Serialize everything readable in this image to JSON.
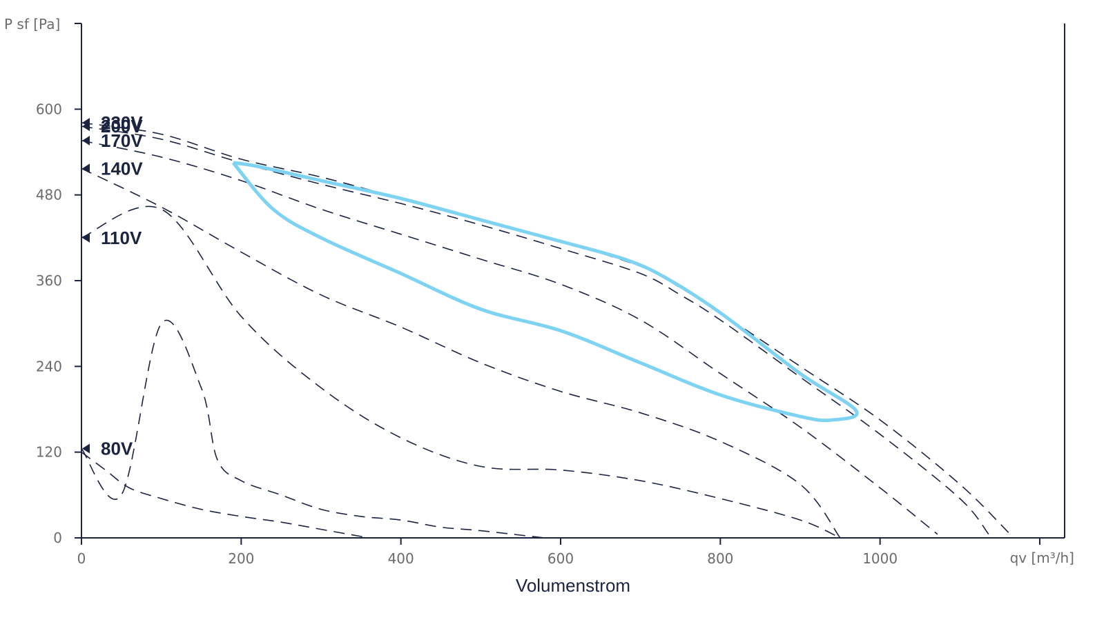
{
  "chart_data": {
    "type": "line",
    "xlabel": "Volumenstrom",
    "x_unit_label": "qv [m³/h]",
    "y_unit_label": "P sf [Pa]",
    "xlim": [
      0,
      1200
    ],
    "ylim": [
      0,
      720
    ],
    "x_ticks": [
      0,
      200,
      400,
      600,
      800,
      1000
    ],
    "y_ticks": [
      0,
      120,
      240,
      360,
      480,
      600
    ],
    "grid": false,
    "legend": "none",
    "colors": {
      "axis": "#1b2340",
      "curve": "#1b2340",
      "envelope": "#7fd3f2",
      "tick_text": "#6b6b6b"
    },
    "series": [
      {
        "name": "230V",
        "x": [
          0,
          100,
          200,
          300,
          400,
          500,
          600,
          700,
          750,
          800,
          900,
          1000,
          1100,
          1163
        ],
        "y": [
          581,
          565,
          530,
          505,
          475,
          445,
          415,
          380,
          350,
          315,
          240,
          165,
          75,
          5
        ]
      },
      {
        "name": "200V",
        "x": [
          0,
          100,
          200,
          300,
          400,
          500,
          600,
          700,
          750,
          800,
          900,
          1000,
          1100,
          1136
        ],
        "y": [
          576,
          558,
          525,
          495,
          468,
          438,
          405,
          370,
          340,
          305,
          225,
          145,
          55,
          5
        ]
      },
      {
        "name": "170V",
        "x": [
          0,
          100,
          200,
          300,
          400,
          500,
          600,
          700,
          800,
          900,
          1000,
          1072
        ],
        "y": [
          556,
          533,
          500,
          460,
          425,
          390,
          355,
          305,
          230,
          155,
          70,
          5
        ]
      },
      {
        "name": "140V",
        "x": [
          0,
          100,
          200,
          300,
          400,
          500,
          600,
          700,
          800,
          900,
          950
        ],
        "y": [
          517,
          463,
          400,
          340,
          295,
          245,
          205,
          175,
          135,
          75,
          0
        ]
      },
      {
        "name": "110V",
        "x": [
          0,
          100,
          200,
          300,
          400,
          500,
          600,
          700,
          800,
          900,
          950
        ],
        "y": [
          420,
          460,
          310,
          210,
          140,
          100,
          95,
          80,
          55,
          25,
          0
        ]
      },
      {
        "name": "80V",
        "x": [
          0,
          50,
          100,
          150,
          170,
          200,
          250,
          300,
          350,
          400,
          450,
          500,
          580
        ],
        "y": [
          125,
          60,
          300,
          210,
          110,
          80,
          60,
          40,
          30,
          25,
          15,
          10,
          0
        ]
      },
      {
        "name": "",
        "x": [
          0,
          30,
          60,
          100,
          150,
          200,
          250,
          300,
          360
        ],
        "y": [
          120,
          95,
          70,
          55,
          40,
          30,
          22,
          12,
          0
        ]
      }
    ],
    "envelope": {
      "x": [
        190,
        220,
        300,
        400,
        500,
        600,
        680,
        730,
        800,
        900,
        970,
        940,
        900,
        800,
        700,
        600,
        500,
        400,
        300,
        240,
        190
      ],
      "y": [
        525,
        520,
        500,
        475,
        445,
        415,
        390,
        365,
        315,
        230,
        178,
        165,
        170,
        200,
        245,
        290,
        320,
        370,
        420,
        460,
        525
      ]
    },
    "curve_labels": [
      {
        "text": "230V",
        "y": 581
      },
      {
        "text": "200V",
        "y": 576
      },
      {
        "text": "170V",
        "y": 556
      },
      {
        "text": "140V",
        "y": 517
      },
      {
        "text": "110V",
        "y": 420
      },
      {
        "text": "80V",
        "y": 125
      }
    ]
  }
}
